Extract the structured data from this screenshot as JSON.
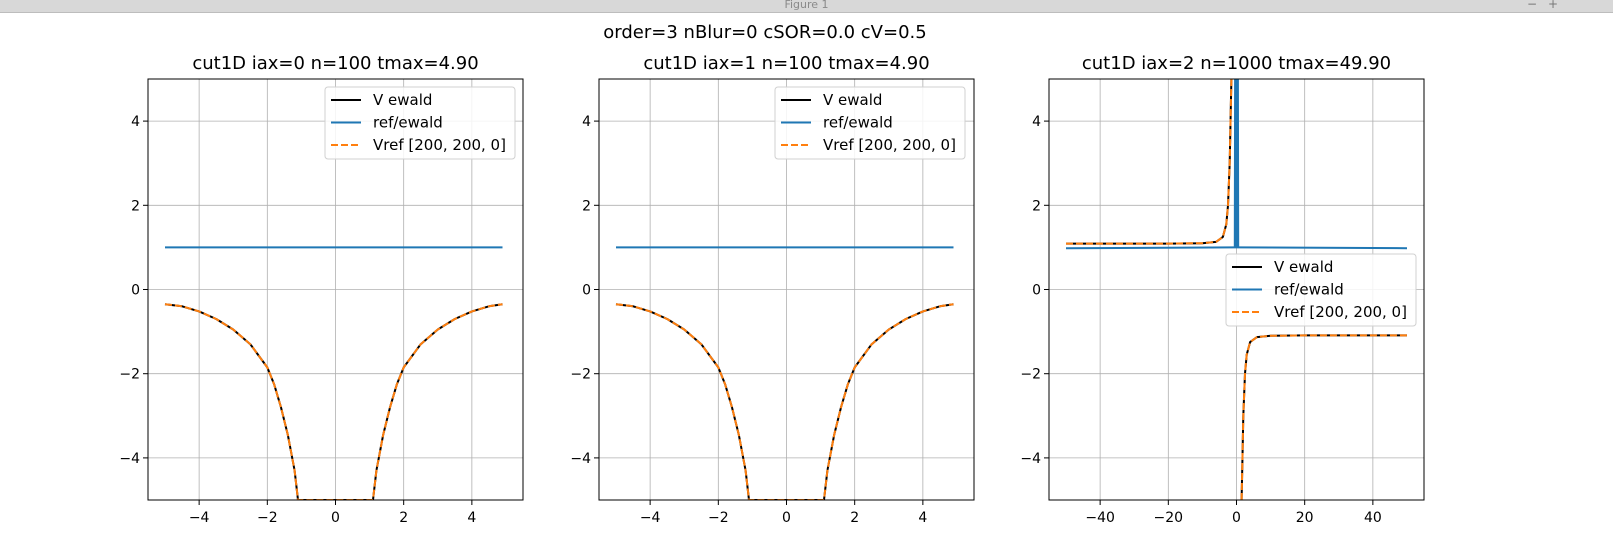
{
  "window": {
    "title": "Figure 1",
    "minimize": "−",
    "maximize": "+"
  },
  "figure": {
    "suptitle": "order=3 nBlur=0 cSOR=0.0 cV=0.5"
  },
  "chart_data": [
    {
      "type": "line",
      "title": "cut1D iax=0 n=100 tmax=4.90",
      "xlim": [
        -5.5,
        5.5
      ],
      "ylim": [
        -5,
        5
      ],
      "xticks": [
        -4,
        -2,
        0,
        2,
        4
      ],
      "yticks": [
        -4,
        -2,
        0,
        2,
        4
      ],
      "grid": true,
      "legend_position": "upper-right",
      "series": [
        {
          "name": "V ewald",
          "color": "#000000",
          "style": "solid",
          "x": [
            -5.0,
            -4.5,
            -4.0,
            -3.5,
            -3.0,
            -2.5,
            -2.0,
            -1.8,
            -1.6,
            -1.4,
            -1.2,
            -1.1,
            1.1,
            1.2,
            1.4,
            1.6,
            1.8,
            2.0,
            2.5,
            3.0,
            3.5,
            4.0,
            4.5,
            4.9
          ],
          "y": [
            -0.35,
            -0.4,
            -0.52,
            -0.7,
            -0.95,
            -1.3,
            -1.85,
            -2.25,
            -2.8,
            -3.45,
            -4.3,
            -5.0,
            -5.0,
            -4.3,
            -3.45,
            -2.8,
            -2.25,
            -1.85,
            -1.3,
            -0.95,
            -0.7,
            -0.52,
            -0.4,
            -0.35
          ]
        },
        {
          "name": "ref/ewald",
          "color": "#1f77b4",
          "style": "solid",
          "x": [
            -5.0,
            4.9
          ],
          "y": [
            1.0,
            1.0
          ]
        },
        {
          "name": "Vref [200, 200, 0]",
          "color": "#ff7f0e",
          "style": "dashed",
          "x": [
            -5.0,
            -4.5,
            -4.0,
            -3.5,
            -3.0,
            -2.5,
            -2.0,
            -1.8,
            -1.6,
            -1.4,
            -1.2,
            -1.1,
            1.1,
            1.2,
            1.4,
            1.6,
            1.8,
            2.0,
            2.5,
            3.0,
            3.5,
            4.0,
            4.5,
            4.9
          ],
          "y": [
            -0.35,
            -0.4,
            -0.52,
            -0.7,
            -0.95,
            -1.3,
            -1.85,
            -2.25,
            -2.8,
            -3.45,
            -4.3,
            -5.0,
            -5.0,
            -4.3,
            -3.45,
            -2.8,
            -2.25,
            -1.85,
            -1.3,
            -0.95,
            -0.7,
            -0.52,
            -0.4,
            -0.35
          ]
        }
      ]
    },
    {
      "type": "line",
      "title": "cut1D iax=1 n=100 tmax=4.90",
      "xlim": [
        -5.5,
        5.5
      ],
      "ylim": [
        -5,
        5
      ],
      "xticks": [
        -4,
        -2,
        0,
        2,
        4
      ],
      "yticks": [
        -4,
        -2,
        0,
        2,
        4
      ],
      "grid": true,
      "legend_position": "upper-right",
      "series": [
        {
          "name": "V ewald",
          "color": "#000000",
          "style": "solid",
          "x": [
            -5.0,
            -4.5,
            -4.0,
            -3.5,
            -3.0,
            -2.5,
            -2.0,
            -1.8,
            -1.6,
            -1.4,
            -1.2,
            -1.1,
            1.1,
            1.2,
            1.4,
            1.6,
            1.8,
            2.0,
            2.5,
            3.0,
            3.5,
            4.0,
            4.5,
            4.9
          ],
          "y": [
            -0.35,
            -0.4,
            -0.52,
            -0.7,
            -0.95,
            -1.3,
            -1.85,
            -2.25,
            -2.8,
            -3.45,
            -4.3,
            -5.0,
            -5.0,
            -4.3,
            -3.45,
            -2.8,
            -2.25,
            -1.85,
            -1.3,
            -0.95,
            -0.7,
            -0.52,
            -0.4,
            -0.35
          ]
        },
        {
          "name": "ref/ewald",
          "color": "#1f77b4",
          "style": "solid",
          "x": [
            -5.0,
            4.9
          ],
          "y": [
            1.0,
            1.0
          ]
        },
        {
          "name": "Vref [200, 200, 0]",
          "color": "#ff7f0e",
          "style": "dashed",
          "x": [
            -5.0,
            -4.5,
            -4.0,
            -3.5,
            -3.0,
            -2.5,
            -2.0,
            -1.8,
            -1.6,
            -1.4,
            -1.2,
            -1.1,
            1.1,
            1.2,
            1.4,
            1.6,
            1.8,
            2.0,
            2.5,
            3.0,
            3.5,
            4.0,
            4.5,
            4.9
          ],
          "y": [
            -0.35,
            -0.4,
            -0.52,
            -0.7,
            -0.95,
            -1.3,
            -1.85,
            -2.25,
            -2.8,
            -3.45,
            -4.3,
            -5.0,
            -5.0,
            -4.3,
            -3.45,
            -2.8,
            -2.25,
            -1.85,
            -1.3,
            -0.95,
            -0.7,
            -0.52,
            -0.4,
            -0.35
          ]
        }
      ]
    },
    {
      "type": "line",
      "title": "cut1D iax=2 n=1000 tmax=49.90",
      "xlim": [
        -55,
        55
      ],
      "ylim": [
        -5,
        5
      ],
      "xticks": [
        -40,
        -20,
        0,
        20,
        40
      ],
      "yticks": [
        -4,
        -2,
        0,
        2,
        4
      ],
      "grid": true,
      "legend_position": "center-right",
      "series": [
        {
          "name": "V ewald",
          "color": "#000000",
          "style": "solid",
          "x": [
            -50,
            -40,
            -30,
            -20,
            -10,
            -6,
            -4,
            -3,
            -2.5,
            -2,
            -1.7,
            -1.5,
            null,
            1.5,
            1.7,
            2,
            2.5,
            3,
            4,
            6,
            10,
            20,
            30,
            40,
            50
          ],
          "y": [
            1.09,
            1.09,
            1.09,
            1.09,
            1.1,
            1.13,
            1.25,
            1.55,
            2.0,
            3.0,
            4.2,
            5.0,
            null,
            -5.0,
            -4.2,
            -3.0,
            -2.0,
            -1.55,
            -1.25,
            -1.13,
            -1.1,
            -1.09,
            -1.09,
            -1.09,
            -1.09
          ]
        },
        {
          "name": "ref/ewald",
          "color": "#1f77b4",
          "style": "solid",
          "x": [
            -50,
            -1,
            -0.5,
            -0.4,
            -0.3,
            -0.2,
            -0.1,
            0,
            0.1,
            0.2,
            0.3,
            0.4,
            0.5,
            1,
            50
          ],
          "y": [
            0.98,
            1.0,
            1.0,
            5.0,
            1.0,
            5.0,
            1.0,
            5.0,
            1.0,
            5.0,
            1.0,
            5.0,
            1.0,
            1.0,
            0.98
          ]
        },
        {
          "name": "Vref [200, 200, 0]",
          "color": "#ff7f0e",
          "style": "dashed",
          "x": [
            -50,
            -40,
            -30,
            -20,
            -10,
            -6,
            -4,
            -3,
            -2.5,
            -2,
            -1.7,
            -1.5,
            null,
            1.5,
            1.7,
            2,
            2.5,
            3,
            4,
            6,
            10,
            20,
            30,
            40,
            50
          ],
          "y": [
            1.09,
            1.09,
            1.09,
            1.09,
            1.1,
            1.13,
            1.25,
            1.55,
            2.0,
            3.0,
            4.2,
            5.0,
            null,
            -5.0,
            -4.2,
            -3.0,
            -2.0,
            -1.55,
            -1.25,
            -1.13,
            -1.1,
            -1.09,
            -1.09,
            -1.09,
            -1.09
          ]
        }
      ]
    }
  ]
}
